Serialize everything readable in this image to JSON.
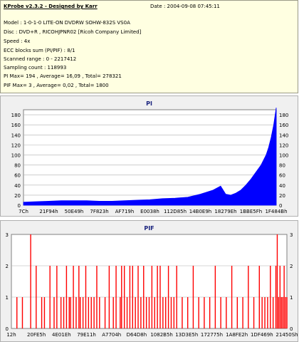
{
  "info": {
    "title": "KProbe v2.3.2 - Designed by Karr",
    "date": "Date : 2004-09-08 07:45:11",
    "lines": [
      "Model : 1-0-1-0 LITE-ON DVDRW SOHW-832S  VS0A",
      "Disc : DVD+R , RICOHJPNR02 [Ricoh Company Limited]",
      "Speed : 4x",
      "ECC blocks sum (PI/PIF) : 8/1",
      "Scanned range : 0 - 2217412",
      "Sampling count : 118993",
      "PI Max= 194 , Average= 16,09 , Total= 278321",
      "PIF Max= 3 , Average= 0,02 , Total= 1800"
    ]
  },
  "chart_data": [
    {
      "type": "area",
      "title": "PI",
      "ylim": [
        0,
        190
      ],
      "yticks": [
        0,
        20,
        40,
        60,
        80,
        100,
        120,
        140,
        160,
        180
      ],
      "xticks": [
        "7Ch",
        "21F94h",
        "50E49h",
        "7F823h",
        "AF719h",
        "E0038h",
        "112D85h",
        "14B0E9h",
        "18279Eh",
        "1BBE5Fh",
        "1F484Bh"
      ],
      "color": "#0000ff",
      "grid": true,
      "series": [
        {
          "x_fraction": [
            0,
            0.05,
            0.1,
            0.15,
            0.2,
            0.25,
            0.3,
            0.35,
            0.4,
            0.45,
            0.5,
            0.55,
            0.6,
            0.65,
            0.7,
            0.75,
            0.78,
            0.8,
            0.82,
            0.84,
            0.86,
            0.88,
            0.9,
            0.92,
            0.94,
            0.96,
            0.97,
            0.98,
            0.99,
            1.0
          ],
          "values": [
            6,
            7,
            8,
            9,
            9,
            9,
            8,
            8,
            9,
            10,
            11,
            13,
            14,
            16,
            22,
            30,
            38,
            22,
            20,
            24,
            30,
            40,
            52,
            66,
            80,
            100,
            115,
            135,
            160,
            194
          ]
        }
      ]
    },
    {
      "type": "bar",
      "title": "PIF",
      "ylim": [
        0,
        3
      ],
      "yticks": [
        0,
        1,
        2,
        3
      ],
      "xticks": [
        "12h",
        "20FE5h",
        "4E01Eh",
        "79E11h",
        "A7704h",
        "D64D8h",
        "1082B5h",
        "13D3E5h",
        "172775h",
        "1A8FE2h",
        "1DF469h",
        "21450Sh"
      ],
      "color": "#ff0000",
      "grid": true,
      "series": [
        {
          "x_fraction": [
            0.02,
            0.04,
            0.07,
            0.09,
            0.11,
            0.12,
            0.14,
            0.155,
            0.165,
            0.18,
            0.19,
            0.2,
            0.21,
            0.215,
            0.225,
            0.235,
            0.245,
            0.25,
            0.26,
            0.27,
            0.28,
            0.29,
            0.3,
            0.31,
            0.32,
            0.34,
            0.355,
            0.37,
            0.38,
            0.395,
            0.4,
            0.41,
            0.42,
            0.43,
            0.44,
            0.45,
            0.46,
            0.47,
            0.48,
            0.49,
            0.5,
            0.51,
            0.52,
            0.53,
            0.54,
            0.55,
            0.56,
            0.57,
            0.58,
            0.59,
            0.6,
            0.62,
            0.64,
            0.66,
            0.68,
            0.7,
            0.72,
            0.74,
            0.76,
            0.78,
            0.8,
            0.82,
            0.84,
            0.86,
            0.88,
            0.9,
            0.91,
            0.92,
            0.93,
            0.94,
            0.95,
            0.96,
            0.965,
            0.97,
            0.975,
            0.98,
            0.985,
            0.99,
            0.995,
            1.0
          ],
          "values": [
            1,
            1,
            3,
            2,
            1,
            1,
            2,
            1,
            2,
            1,
            1,
            2,
            1,
            1,
            2,
            1,
            2,
            1,
            1,
            2,
            1,
            1,
            1,
            2,
            1,
            1,
            2,
            1,
            2,
            1,
            2,
            2,
            1,
            2,
            2,
            1,
            2,
            1,
            2,
            1,
            1,
            2,
            1,
            2,
            2,
            1,
            1,
            2,
            1,
            1,
            2,
            1,
            1,
            2,
            1,
            1,
            1,
            2,
            1,
            1,
            2,
            1,
            1,
            2,
            1,
            2,
            1,
            1,
            1,
            2,
            1,
            2,
            3,
            1,
            2,
            1,
            1,
            2,
            1,
            1
          ]
        }
      ]
    }
  ]
}
